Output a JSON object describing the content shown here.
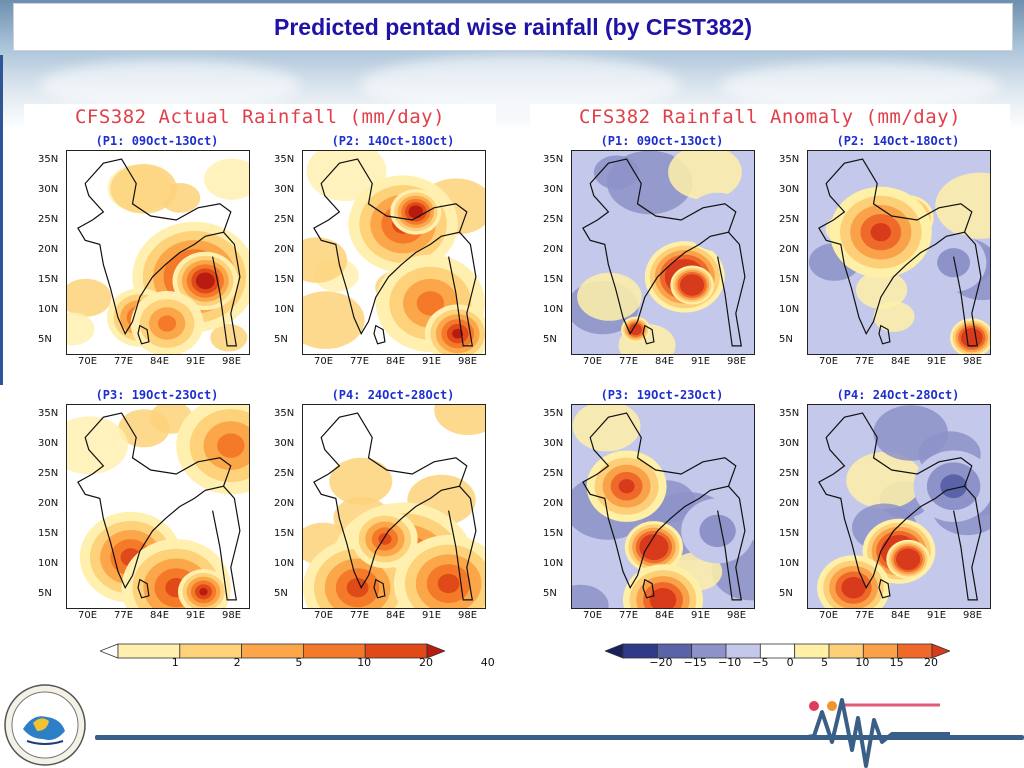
{
  "slide": {
    "title": "Predicted pentad wise rainfall (by CFST382)"
  },
  "left_group": {
    "title": "CFS382 Actual Rainfall (mm/day)",
    "panels": [
      {
        "label": "(P1: 09Oct-13Oct)"
      },
      {
        "label": "(P2: 14Oct-18Oct)"
      },
      {
        "label": "(P3: 19Oct-23Oct)"
      },
      {
        "label": "(P4: 24Oct-28Oct)"
      }
    ],
    "colorbar_ticks": [
      "1",
      "2",
      "5",
      "10",
      "20",
      "40"
    ],
    "colorbar_colors": [
      "#ffffff",
      "#fff0b0",
      "#fdd27a",
      "#fca64a",
      "#f47a2a",
      "#e04a18",
      "#b81c10"
    ]
  },
  "right_group": {
    "title": "CFS382 Rainfall Anomaly (mm/day)",
    "panels": [
      {
        "label": "(P1: 09Oct-13Oct)"
      },
      {
        "label": "(P2: 14Oct-18Oct)"
      },
      {
        "label": "(P3: 19Oct-23Oct)"
      },
      {
        "label": "(P4: 24Oct-28Oct)"
      }
    ],
    "colorbar_ticks": [
      "−20",
      "−15",
      "−10",
      "−5",
      "0",
      "5",
      "10",
      "15",
      "20"
    ],
    "colorbar_colors": [
      "#1a1f5e",
      "#2f3a88",
      "#5a63a8",
      "#8d92c8",
      "#c4c8ea",
      "#ffffff",
      "#fff0a8",
      "#fdcf78",
      "#f9a24a",
      "#ef6a2a",
      "#d83a1c"
    ]
  },
  "axes": {
    "y_ticks": [
      "35N",
      "30N",
      "25N",
      "20N",
      "15N",
      "10N",
      "5N"
    ],
    "x_ticks": [
      "70E",
      "77E",
      "84E",
      "91E",
      "98E"
    ]
  },
  "logo": {
    "icon": "imd-seal-icon"
  },
  "brand": {
    "icon": "wave-mark-icon"
  }
}
